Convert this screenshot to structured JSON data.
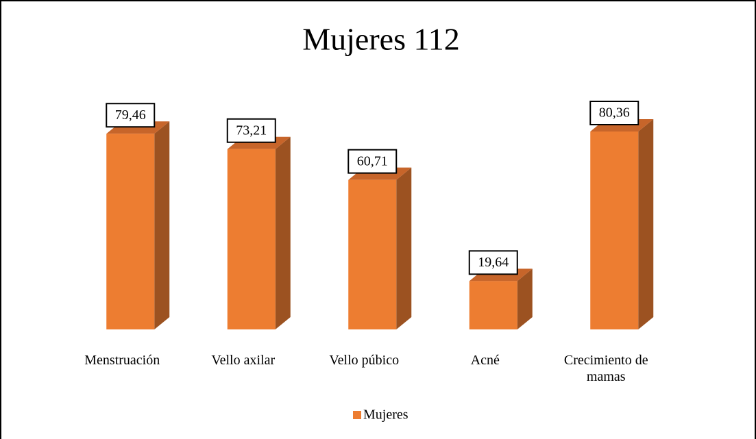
{
  "chart_data": {
    "type": "bar3d",
    "title": "Mujeres 112",
    "categories": [
      "Menstruación",
      "Vello axilar",
      "Vello púbico",
      "Acné",
      "Crecimiento de mamas"
    ],
    "series": [
      {
        "name": "Mujeres",
        "color": "#ed7d31",
        "side_color": "#9c5221",
        "top_color": "#c7652a",
        "values": [
          79.46,
          73.21,
          60.71,
          19.64,
          80.36
        ],
        "value_labels": [
          "79,46",
          "73,21",
          "60,71",
          "19,64",
          "80,36"
        ]
      }
    ],
    "legend": "bottom"
  }
}
